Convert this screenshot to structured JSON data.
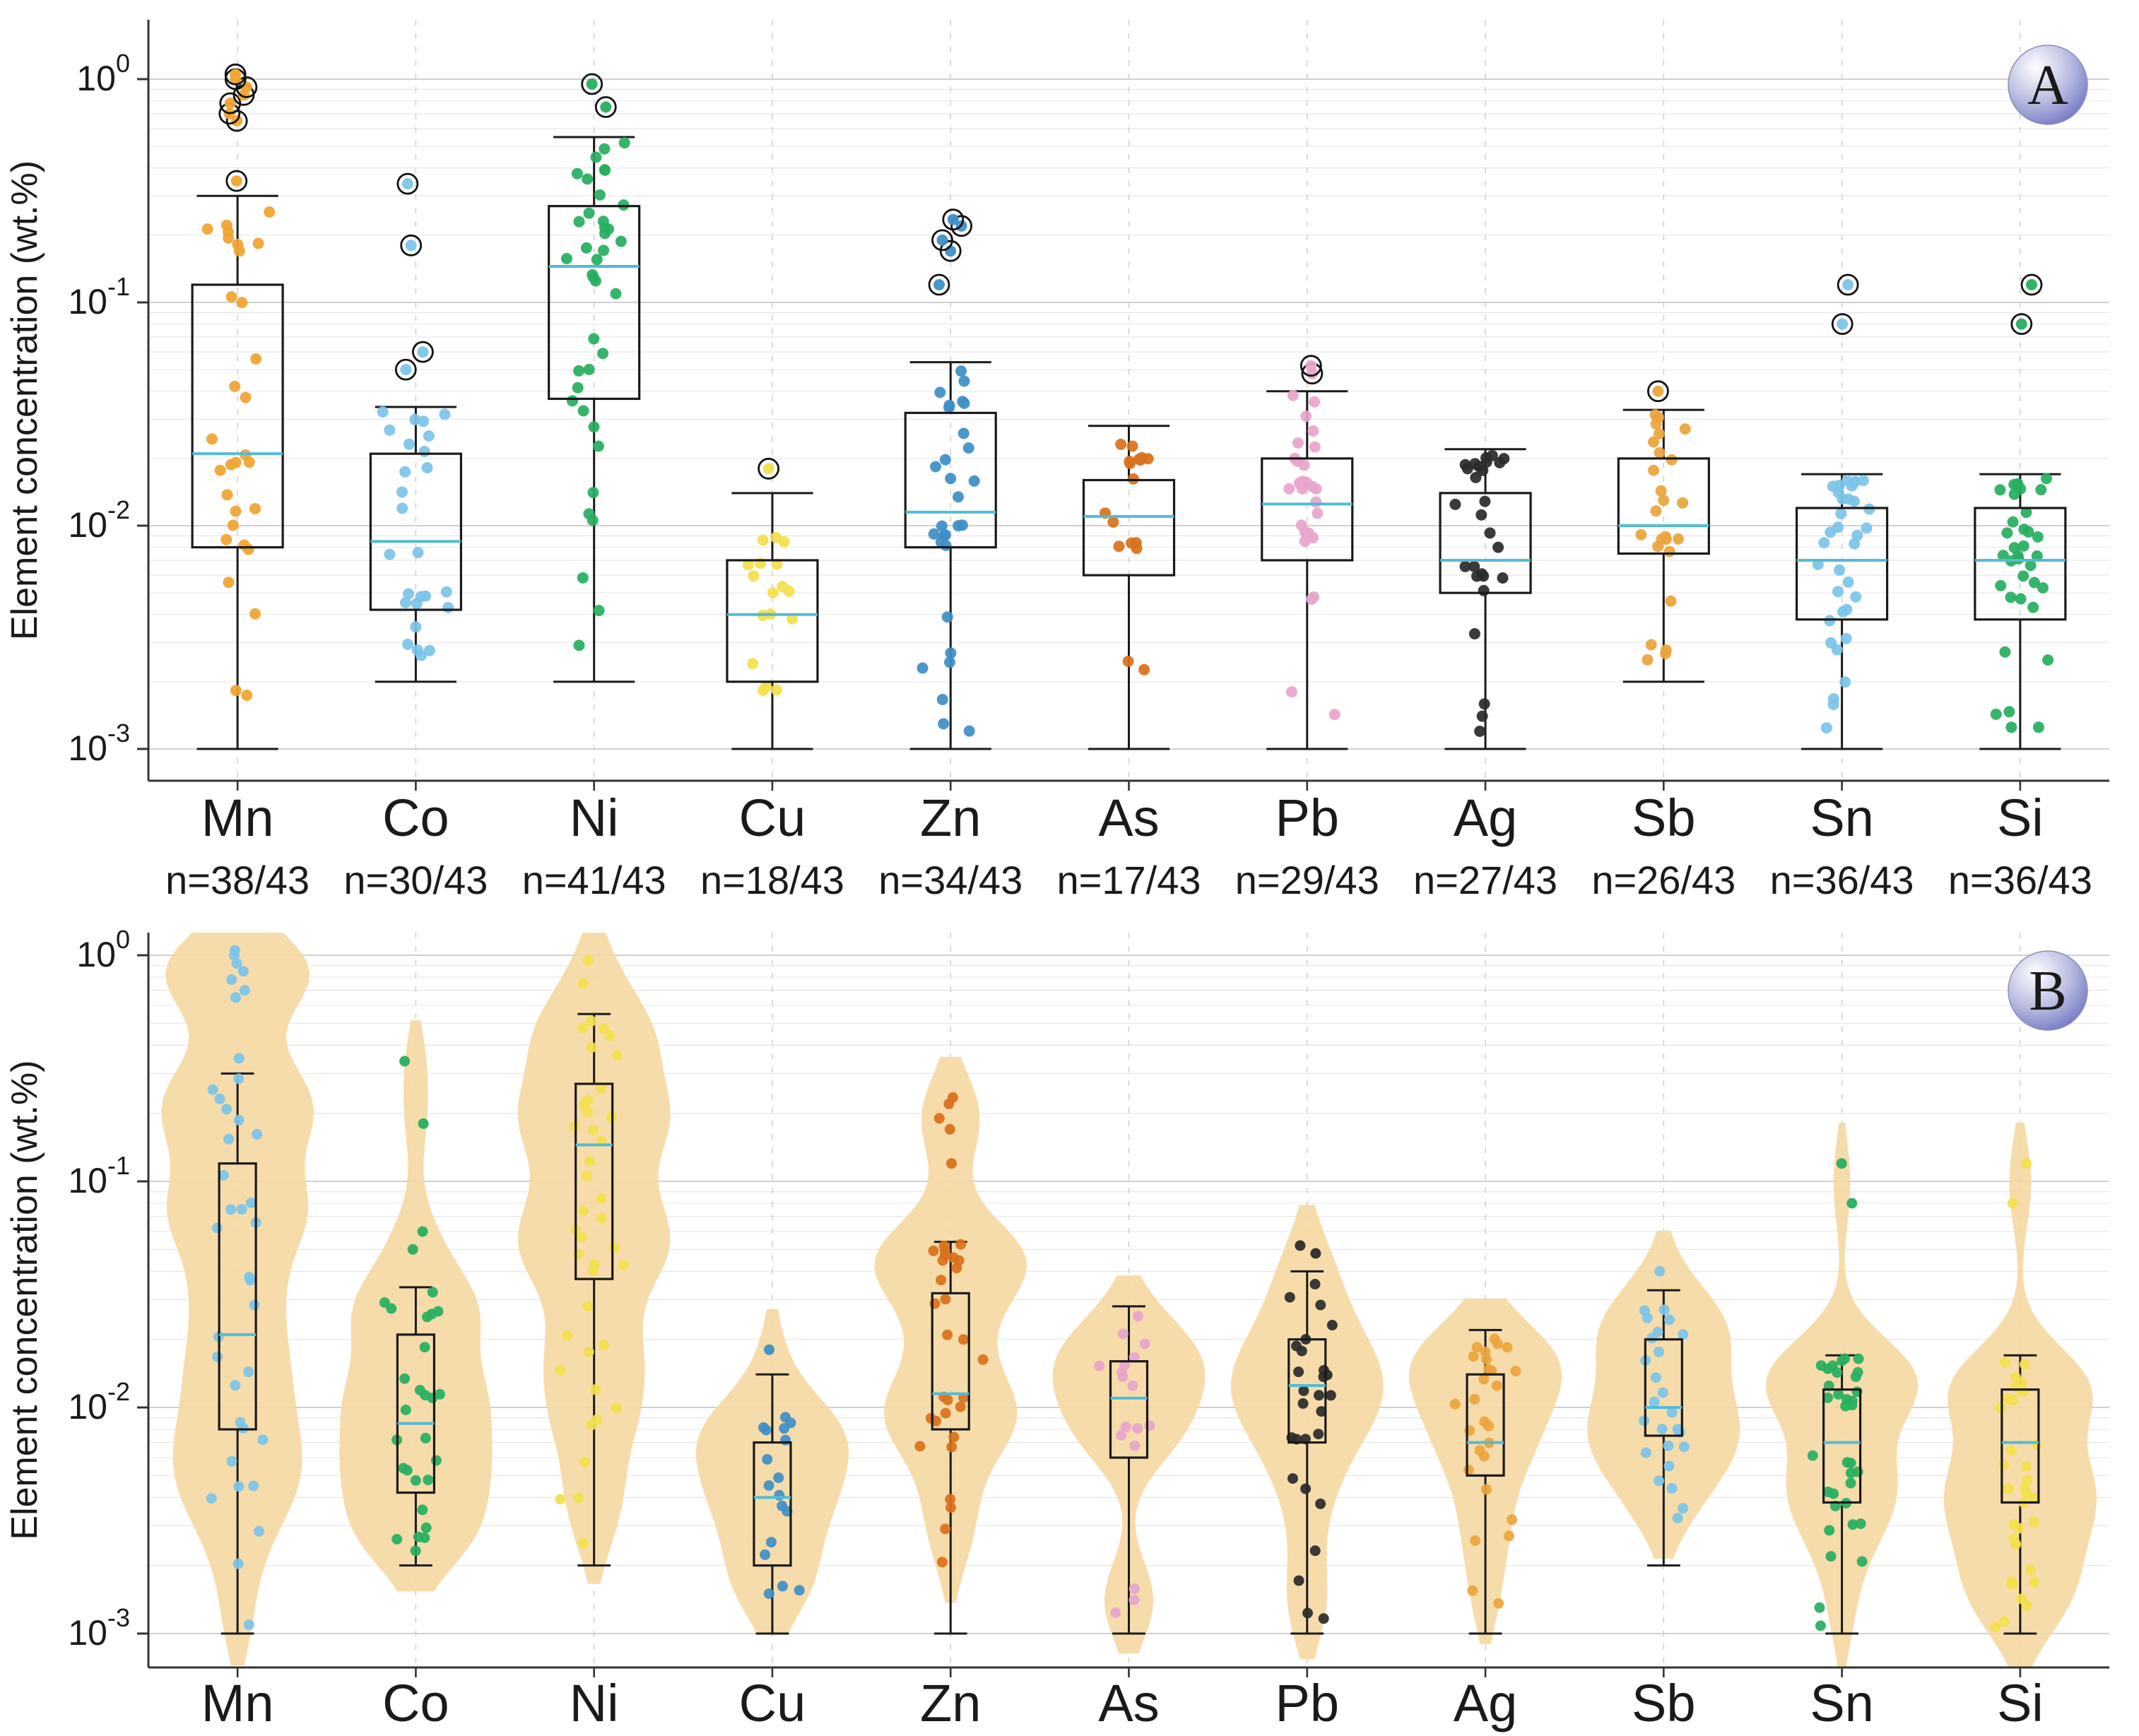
{
  "figure": {
    "ylabel": "Element concentration (wt.%)",
    "panel_a_label": "A",
    "panel_b_label": "B"
  },
  "chart_data": [
    {
      "type": "box",
      "panel_label": "A",
      "ylabel": "Element concentration (wt.%)",
      "yscale": "log",
      "ylim": [
        0.001,
        1.0
      ],
      "y_ticks": [
        "10^0",
        "10^-1",
        "10^-2",
        "10^-3"
      ],
      "grid": true,
      "categories": [
        "Mn",
        "Co",
        "Ni",
        "Cu",
        "Zn",
        "As",
        "Pb",
        "Ag",
        "Sb",
        "Sn",
        "Si"
      ],
      "n_labels": [
        "n=38/43",
        "n=30/43",
        "n=41/43",
        "n=18/43",
        "n=34/43",
        "n=17/43",
        "n=29/43",
        "n=27/43",
        "n=26/43",
        "n=36/43",
        "n=36/43"
      ],
      "n": [
        38,
        30,
        41,
        18,
        34,
        17,
        29,
        27,
        26,
        36,
        36
      ],
      "median_color": "#53BBD5",
      "point_colors": [
        "#F0A431",
        "#7CC4E8",
        "#27AE60",
        "#F2E04D",
        "#3E8FC6",
        "#D9711C",
        "#E7A6CB",
        "#2B2B2B",
        "#EBA53C",
        "#7CC4E8",
        "#27AE60"
      ],
      "series": [
        {
          "name": "Mn",
          "min": 0.001,
          "q1": 0.008,
          "median": 0.021,
          "q3": 0.12,
          "max": 0.3,
          "outliers": [
            0.35,
            0.65,
            0.7,
            0.78,
            0.85,
            0.92,
            1.0,
            1.05
          ]
        },
        {
          "name": "Co",
          "min": 0.002,
          "q1": 0.0042,
          "median": 0.0085,
          "q3": 0.021,
          "max": 0.034,
          "outliers": [
            0.05,
            0.06,
            0.18,
            0.34
          ]
        },
        {
          "name": "Ni",
          "min": 0.002,
          "q1": 0.037,
          "median": 0.145,
          "q3": 0.27,
          "max": 0.55,
          "outliers": [
            0.75,
            0.95
          ]
        },
        {
          "name": "Cu",
          "min": 0.001,
          "q1": 0.002,
          "median": 0.004,
          "q3": 0.007,
          "max": 0.014,
          "outliers": [
            0.018
          ]
        },
        {
          "name": "Zn",
          "min": 0.001,
          "q1": 0.008,
          "median": 0.0115,
          "q3": 0.032,
          "max": 0.054,
          "outliers": [
            0.12,
            0.17,
            0.19,
            0.22,
            0.235
          ]
        },
        {
          "name": "As",
          "min": 0.001,
          "q1": 0.006,
          "median": 0.011,
          "q3": 0.016,
          "max": 0.028,
          "outliers": []
        },
        {
          "name": "Pb",
          "min": 0.001,
          "q1": 0.007,
          "median": 0.0125,
          "q3": 0.02,
          "max": 0.04,
          "outliers": [
            0.048,
            0.052
          ]
        },
        {
          "name": "Ag",
          "min": 0.001,
          "q1": 0.005,
          "median": 0.007,
          "q3": 0.014,
          "max": 0.022,
          "outliers": []
        },
        {
          "name": "Sb",
          "min": 0.002,
          "q1": 0.0075,
          "median": 0.01,
          "q3": 0.02,
          "max": 0.033,
          "outliers": [
            0.04
          ]
        },
        {
          "name": "Sn",
          "min": 0.001,
          "q1": 0.0038,
          "median": 0.007,
          "q3": 0.012,
          "max": 0.017,
          "outliers": [
            0.08,
            0.12
          ]
        },
        {
          "name": "Si",
          "min": 0.001,
          "q1": 0.0038,
          "median": 0.007,
          "q3": 0.012,
          "max": 0.017,
          "outliers": [
            0.08,
            0.12
          ]
        }
      ]
    },
    {
      "type": "violin",
      "panel_label": "B",
      "ylabel": "Element concentration (wt.%)",
      "yscale": "log",
      "ylim": [
        0.001,
        1.0
      ],
      "y_ticks": [
        "10^0",
        "10^-1",
        "10^-2",
        "10^-3"
      ],
      "grid": true,
      "categories": [
        "Mn",
        "Co",
        "Ni",
        "Cu",
        "Zn",
        "As",
        "Pb",
        "Ag",
        "Sb",
        "Sn",
        "Si"
      ],
      "n_labels": [],
      "n": [
        38,
        30,
        41,
        18,
        34,
        17,
        29,
        27,
        26,
        36,
        36
      ],
      "median_color": "#53BBD5",
      "violin_color": "#F5D9A3",
      "point_colors": [
        "#7CC4E8",
        "#27AE60",
        "#F2E04D",
        "#3E8FC6",
        "#D9711C",
        "#E7A6CB",
        "#2B2B2B",
        "#EBA53C",
        "#7CC4E8",
        "#27AE60",
        "#F2E04D"
      ],
      "series": [
        {
          "name": "Mn",
          "min": 0.001,
          "q1": 0.008,
          "median": 0.021,
          "q3": 0.12,
          "max": 0.3,
          "outliers": [
            0.35,
            0.65,
            0.7,
            0.78,
            0.85,
            0.92,
            1.0,
            1.05
          ]
        },
        {
          "name": "Co",
          "min": 0.002,
          "q1": 0.0042,
          "median": 0.0085,
          "q3": 0.021,
          "max": 0.034,
          "outliers": [
            0.05,
            0.06,
            0.18,
            0.34
          ]
        },
        {
          "name": "Ni",
          "min": 0.002,
          "q1": 0.037,
          "median": 0.145,
          "q3": 0.27,
          "max": 0.55,
          "outliers": [
            0.75,
            0.95
          ]
        },
        {
          "name": "Cu",
          "min": 0.001,
          "q1": 0.002,
          "median": 0.004,
          "q3": 0.007,
          "max": 0.014,
          "outliers": [
            0.018
          ]
        },
        {
          "name": "Zn",
          "min": 0.001,
          "q1": 0.008,
          "median": 0.0115,
          "q3": 0.032,
          "max": 0.054,
          "outliers": [
            0.12,
            0.17,
            0.19,
            0.22,
            0.235
          ]
        },
        {
          "name": "As",
          "min": 0.001,
          "q1": 0.006,
          "median": 0.011,
          "q3": 0.016,
          "max": 0.028,
          "outliers": []
        },
        {
          "name": "Pb",
          "min": 0.001,
          "q1": 0.007,
          "median": 0.0125,
          "q3": 0.02,
          "max": 0.04,
          "outliers": [
            0.048,
            0.052
          ]
        },
        {
          "name": "Ag",
          "min": 0.001,
          "q1": 0.005,
          "median": 0.007,
          "q3": 0.014,
          "max": 0.022,
          "outliers": []
        },
        {
          "name": "Sb",
          "min": 0.002,
          "q1": 0.0075,
          "median": 0.01,
          "q3": 0.02,
          "max": 0.033,
          "outliers": [
            0.04
          ]
        },
        {
          "name": "Sn",
          "min": 0.001,
          "q1": 0.0038,
          "median": 0.007,
          "q3": 0.012,
          "max": 0.017,
          "outliers": [
            0.08,
            0.12
          ]
        },
        {
          "name": "Si",
          "min": 0.001,
          "q1": 0.0038,
          "median": 0.007,
          "q3": 0.012,
          "max": 0.017,
          "outliers": [
            0.08,
            0.12
          ]
        }
      ]
    }
  ]
}
